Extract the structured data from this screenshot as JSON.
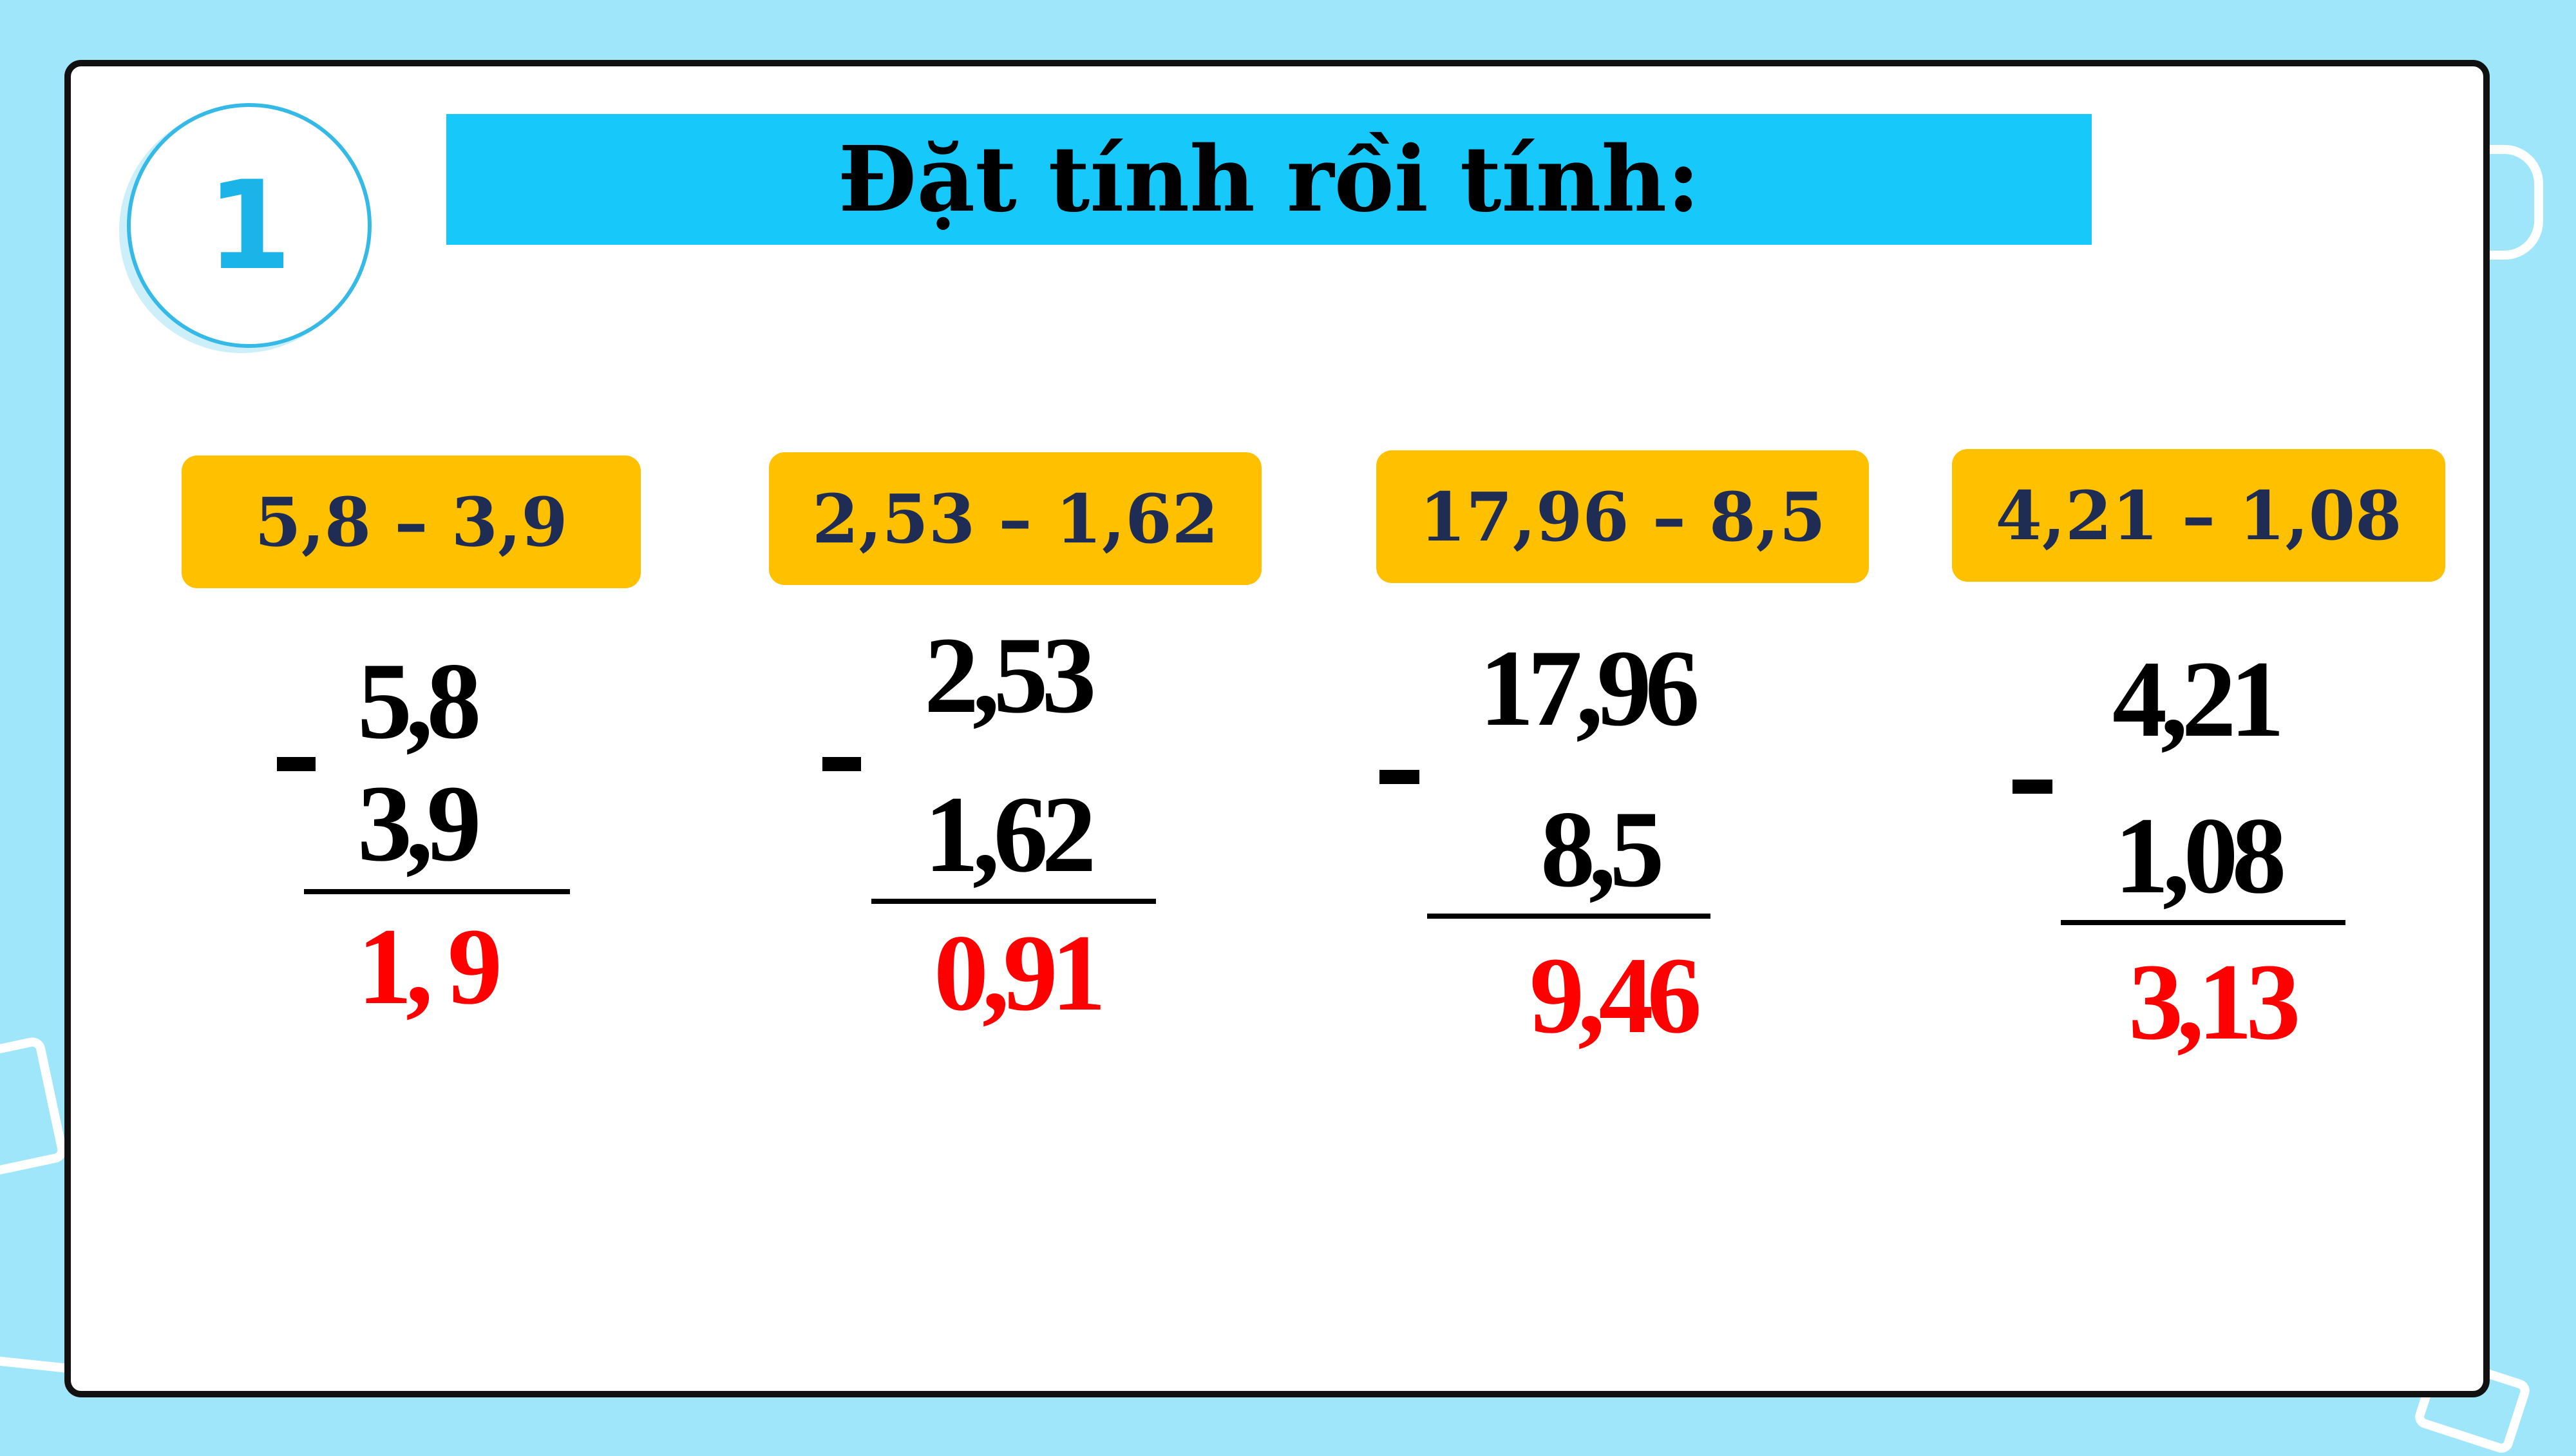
{
  "exercise_number": "1",
  "title": "Đặt tính rồi tính:",
  "problems": [
    {
      "expression": "5,8 – 3,9",
      "minuend": "5,8",
      "subtrahend": "3,9",
      "result": "1, 9"
    },
    {
      "expression": "2,53 – 1,62",
      "minuend": "2,53",
      "subtrahend": "1,62",
      "result": "0,91"
    },
    {
      "expression": "17,96 – 8,5",
      "minuend": "17,96",
      "subtrahend": "8,5",
      "result": "9,46"
    },
    {
      "expression": "4,21 – 1,08",
      "minuend": "4,21",
      "subtrahend": "1,08",
      "result": "3,13"
    }
  ],
  "colors": {
    "background": "#9fe6fb",
    "title_bar": "#17c8fb",
    "expression_pill": "#ffc000",
    "expression_text": "#1f2d55",
    "result_text": "#ff0000",
    "badge_number": "#1bb4e8"
  }
}
